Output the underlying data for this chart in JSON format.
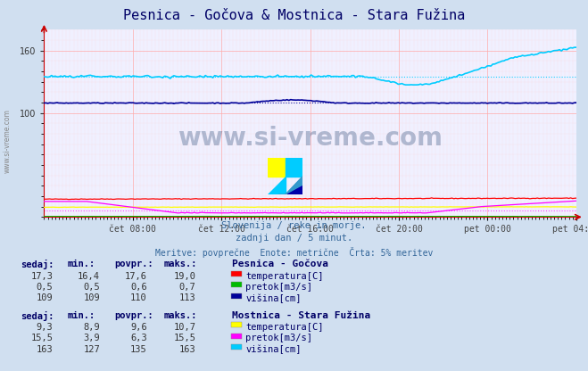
{
  "title": "Pesnica - Gočova & Mostnica - Stara Fužina",
  "background_color": "#d0dff0",
  "plot_background": "#f0f0ff",
  "grid_color_major": "#ffaaaa",
  "ylim": [
    0,
    180
  ],
  "xlabel_ticks": [
    "čet 08:00",
    "čet 12:00",
    "čet 16:00",
    "čet 20:00",
    "pet 00:00",
    "pet 04:00"
  ],
  "n_points": 288,
  "subtitle1": "Slovenija / reke in morje.",
  "subtitle2": "zadnji dan / 5 minut.",
  "subtitle3": "Meritve: povprečne  Enote: metrične  Črta: 5% meritev",
  "watermark": "www.si-vreme.com",
  "station1_name": "Pesnica - Gočova",
  "station1_labels": [
    "temperatura[C]",
    "pretok[m3/s]",
    "višina[cm]"
  ],
  "station1_colors": [
    "#ff0000",
    "#00bb00",
    "#000099"
  ],
  "station1_sedaj": [
    17.3,
    0.5,
    109
  ],
  "station1_min": [
    16.4,
    0.5,
    109
  ],
  "station1_povpr": [
    17.6,
    0.6,
    110
  ],
  "station1_maks": [
    19.0,
    0.7,
    113
  ],
  "station2_name": "Mostnica - Stara Fužina",
  "station2_labels": [
    "temperatura[C]",
    "pretok[m3/s]",
    "višina[cm]"
  ],
  "station2_colors": [
    "#ffff00",
    "#ff00ff",
    "#00ccff"
  ],
  "station2_sedaj": [
    9.3,
    15.5,
    163
  ],
  "station2_min": [
    8.9,
    3.9,
    127
  ],
  "station2_povpr": [
    9.6,
    6.3,
    135
  ],
  "station2_maks": [
    10.7,
    15.5,
    163
  ]
}
